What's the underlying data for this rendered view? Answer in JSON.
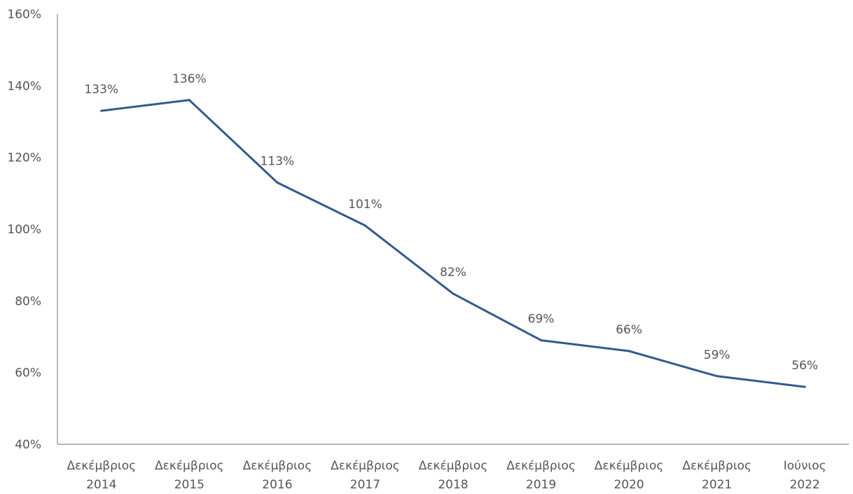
{
  "chart_data": {
    "type": "line",
    "title": "",
    "xlabel": "",
    "ylabel": "",
    "categories": [
      [
        "Δεκέμβριος",
        "2014"
      ],
      [
        "Δεκέμβριος",
        "2015"
      ],
      [
        "Δεκέμβριος",
        "2016"
      ],
      [
        "Δεκέμβριος",
        "2017"
      ],
      [
        "Δεκέμβριος",
        "2018"
      ],
      [
        "Δεκέμβριος",
        "2019"
      ],
      [
        "Δεκέμβριος",
        "2020"
      ],
      [
        "Δεκέμβριος",
        "2021"
      ],
      [
        "Ιούνιος",
        "2022"
      ]
    ],
    "series": [
      {
        "values": [
          133,
          136,
          113,
          101,
          82,
          69,
          66,
          59,
          56
        ],
        "data_labels": [
          "133%",
          "136%",
          "113%",
          "101%",
          "82%",
          "69%",
          "66%",
          "59%",
          "56%"
        ],
        "color": "#335a8c"
      }
    ],
    "ylim": [
      40,
      160
    ],
    "y_ticks": [
      40,
      60,
      80,
      100,
      120,
      140,
      160
    ],
    "y_tick_labels": [
      "40%",
      "60%",
      "80%",
      "100%",
      "120%",
      "140%",
      "160%"
    ],
    "grid": false,
    "legend": "none"
  }
}
